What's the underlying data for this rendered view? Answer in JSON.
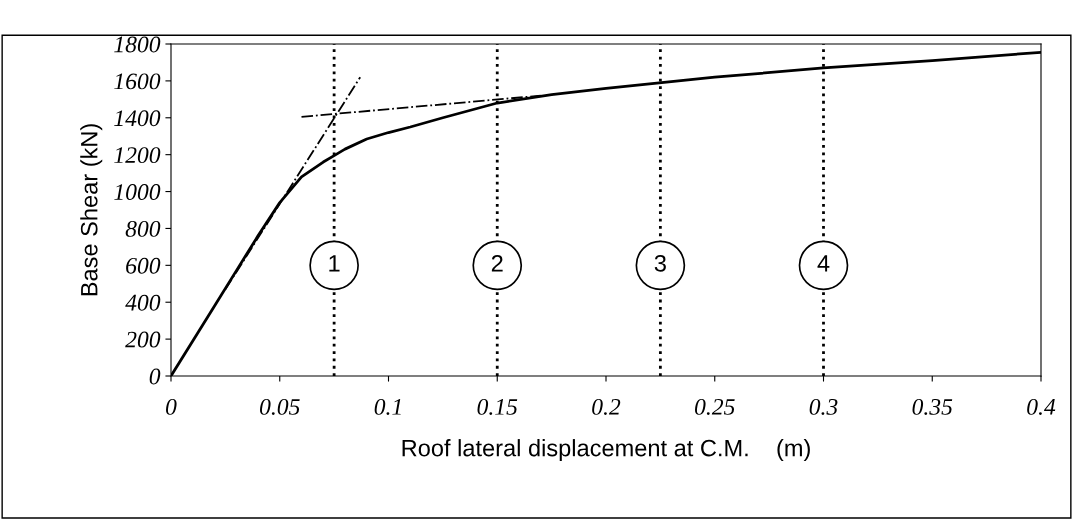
{
  "chart_data": {
    "type": "line",
    "xlabel": "Roof lateral displacement at C.M.    (m)",
    "ylabel": "Base Shear (kN)",
    "xlim": [
      0,
      0.4
    ],
    "ylim": [
      0,
      1800
    ],
    "xticks": [
      0,
      0.05,
      0.1,
      0.15,
      0.2,
      0.25,
      0.3,
      0.35,
      0.4
    ],
    "yticks": [
      0,
      200,
      400,
      600,
      800,
      1000,
      1200,
      1400,
      1600,
      1800
    ],
    "grid": false,
    "legend": false,
    "marker": "none",
    "series": [
      {
        "color": "#000000",
        "line_style": "solid",
        "x": [
          0,
          0.01,
          0.02,
          0.03,
          0.04,
          0.05,
          0.06,
          0.07,
          0.075,
          0.08,
          0.09,
          0.1,
          0.11,
          0.125,
          0.15,
          0.175,
          0.2,
          0.25,
          0.3,
          0.35,
          0.4
        ],
        "values": [
          0,
          190,
          380,
          570,
          760,
          940,
          1080,
          1160,
          1195,
          1230,
          1285,
          1320,
          1350,
          1400,
          1480,
          1525,
          1560,
          1620,
          1670,
          1710,
          1755
        ]
      },
      {
        "color": "#000000",
        "line_style": "dashdot",
        "x": [
          0.025,
          0.087
        ],
        "values": [
          470,
          1620
        ]
      },
      {
        "color": "#000000",
        "line_style": "dashdot",
        "x": [
          0.06,
          0.17
        ],
        "values": [
          1405,
          1520
        ]
      }
    ],
    "ref_lines": [
      {
        "axis": "x",
        "value": 0.075,
        "line_style": "dotted",
        "color": "#000000"
      },
      {
        "axis": "x",
        "value": 0.15,
        "line_style": "dotted",
        "color": "#000000"
      },
      {
        "axis": "x",
        "value": 0.225,
        "line_style": "dotted",
        "color": "#000000"
      },
      {
        "axis": "x",
        "value": 0.3,
        "line_style": "dotted",
        "color": "#000000"
      }
    ],
    "annotations": [
      {
        "text": "1",
        "x": 0.075,
        "y": 600
      },
      {
        "text": "2",
        "x": 0.15,
        "y": 600
      },
      {
        "text": "3",
        "x": 0.225,
        "y": 600
      },
      {
        "text": "4",
        "x": 0.3,
        "y": 600
      }
    ]
  }
}
